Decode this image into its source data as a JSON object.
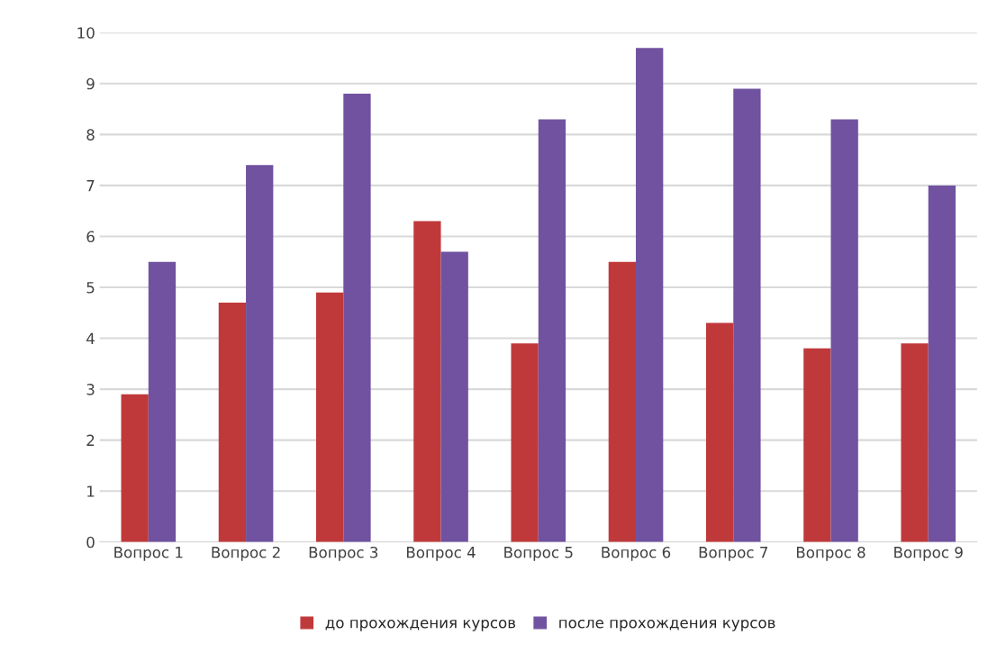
{
  "chart_data": {
    "type": "bar",
    "categories": [
      "Вопрос 1",
      "Вопрос 2",
      "Вопрос 3",
      "Вопрос 4",
      "Вопрос 5",
      "Вопрос 6",
      "Вопрос 7",
      "Вопрос 8",
      "Вопрос 9"
    ],
    "series": [
      {
        "name": "до прохождения курсов",
        "color": "#c0393a",
        "values": [
          2.9,
          4.7,
          4.9,
          6.3,
          3.9,
          5.5,
          4.3,
          3.8,
          3.9
        ]
      },
      {
        "name": "после прохождения курсов",
        "color": "#7052a0",
        "values": [
          5.5,
          7.4,
          8.8,
          5.7,
          8.3,
          9.7,
          8.9,
          8.3,
          7.0
        ]
      }
    ],
    "ylim": [
      0,
      10
    ],
    "yticks": [
      0,
      1,
      2,
      3,
      4,
      5,
      6,
      7,
      8,
      9,
      10
    ],
    "grid": "y",
    "legend": "bottom"
  }
}
